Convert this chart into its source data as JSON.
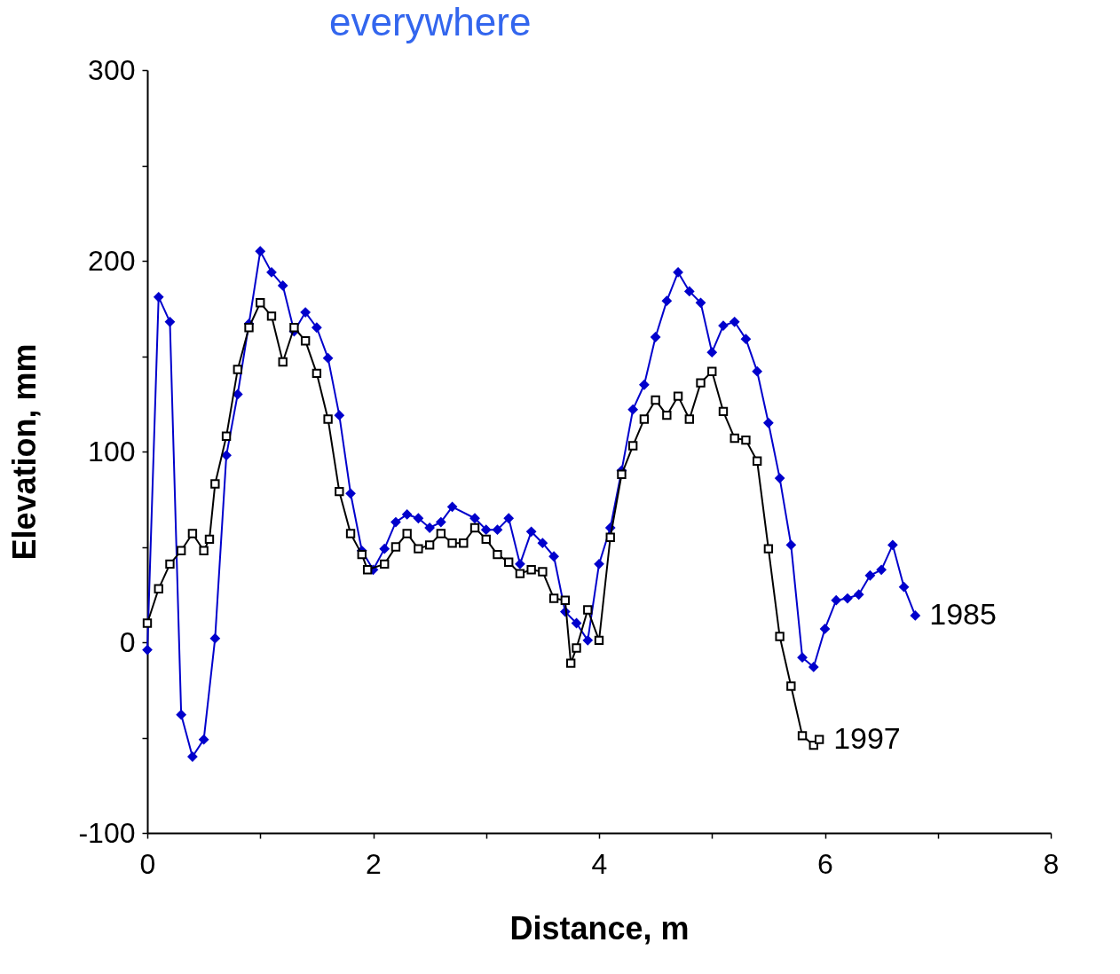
{
  "chart_data": {
    "type": "line",
    "title": "everywhere",
    "xlabel": "Distance, m",
    "ylabel": "Elevation, mm",
    "xlim": [
      0,
      8
    ],
    "xticks": [
      0,
      {
        "value": 1,
        "label": null
      },
      2,
      {
        "value": 3,
        "label": null
      },
      4,
      {
        "value": 5,
        "label": null
      },
      6,
      {
        "value": 7,
        "label": null
      },
      8
    ],
    "ylim": [
      -100,
      300
    ],
    "yticks": [
      -100,
      {
        "value": -50,
        "label": null
      },
      0,
      {
        "value": 50,
        "label": null
      },
      100,
      {
        "value": 150,
        "label": null
      },
      200,
      {
        "value": 250,
        "label": null
      },
      300
    ],
    "grid": false,
    "series": [
      {
        "name": "1985",
        "color": "#0000cc",
        "marker": "diamond",
        "x": [
          0,
          0.1,
          0.2,
          0.3,
          0.4,
          0.5,
          0.6,
          0.7,
          0.8,
          0.9,
          1.0,
          1.1,
          1.2,
          1.3,
          1.4,
          1.5,
          1.6,
          1.7,
          1.8,
          1.9,
          2.0,
          2.1,
          2.2,
          2.3,
          2.4,
          2.5,
          2.6,
          2.7,
          2.9,
          3.0,
          3.1,
          3.2,
          3.3,
          3.4,
          3.5,
          3.6,
          3.7,
          3.8,
          3.9,
          4.0,
          4.1,
          4.2,
          4.3,
          4.4,
          4.5,
          4.6,
          4.7,
          4.8,
          4.9,
          5.0,
          5.1,
          5.2,
          5.3,
          5.4,
          5.5,
          5.6,
          5.7,
          5.8,
          5.9,
          6.0,
          6.1,
          6.2,
          6.3,
          6.4,
          6.5,
          6.6,
          6.7,
          6.8
        ],
        "values": [
          -4,
          181,
          168,
          -38,
          -60,
          -51,
          2,
          98,
          130,
          167,
          205,
          194,
          187,
          163,
          173,
          165,
          149,
          119,
          78,
          48,
          38,
          49,
          63,
          67,
          65,
          60,
          63,
          71,
          65,
          59,
          59,
          65,
          41,
          58,
          52,
          45,
          16,
          10,
          1,
          41,
          60,
          90,
          122,
          135,
          160,
          179,
          194,
          184,
          178,
          152,
          166,
          168,
          159,
          142,
          115,
          86,
          51,
          -8,
          -13,
          7,
          22,
          23,
          25,
          35,
          38,
          51,
          29,
          14
        ]
      },
      {
        "name": "1997",
        "color": "#000000",
        "marker": "square",
        "x": [
          0,
          0.1,
          0.2,
          0.3,
          0.4,
          0.5,
          0.55,
          0.6,
          0.7,
          0.8,
          0.9,
          1.0,
          1.1,
          1.2,
          1.3,
          1.4,
          1.5,
          1.6,
          1.7,
          1.8,
          1.9,
          1.95,
          2.1,
          2.2,
          2.3,
          2.4,
          2.5,
          2.6,
          2.7,
          2.8,
          2.9,
          3.0,
          3.1,
          3.2,
          3.3,
          3.4,
          3.5,
          3.6,
          3.7,
          3.75,
          3.8,
          3.9,
          4.0,
          4.1,
          4.2,
          4.3,
          4.4,
          4.5,
          4.6,
          4.7,
          4.8,
          4.9,
          5.0,
          5.1,
          5.2,
          5.3,
          5.4,
          5.5,
          5.6,
          5.7,
          5.8,
          5.9,
          5.95
        ],
        "values": [
          10,
          28,
          41,
          48,
          57,
          48,
          54,
          83,
          108,
          143,
          165,
          178,
          171,
          147,
          165,
          158,
          141,
          117,
          79,
          57,
          46,
          38,
          41,
          50,
          57,
          49,
          51,
          57,
          52,
          52,
          60,
          54,
          46,
          42,
          36,
          38,
          37,
          23,
          22,
          -11,
          -3,
          17,
          1,
          55,
          88,
          103,
          117,
          127,
          119,
          129,
          117,
          136,
          142,
          121,
          107,
          106,
          95,
          49,
          3,
          -23,
          -49,
          -54,
          -51
        ]
      }
    ]
  }
}
